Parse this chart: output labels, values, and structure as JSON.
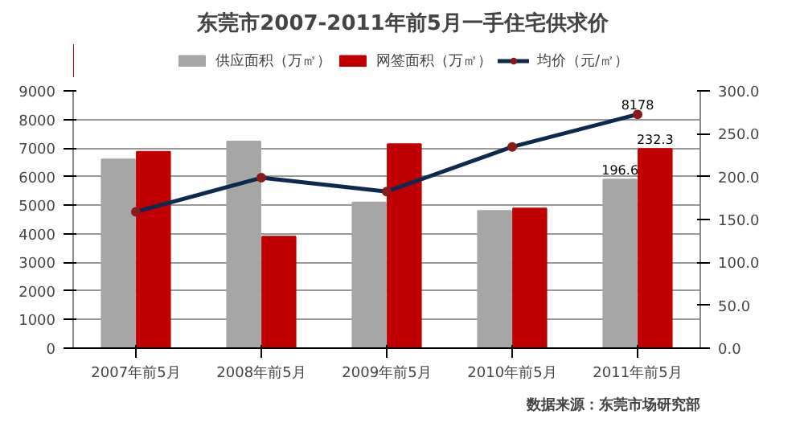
{
  "chart_data": {
    "type": "bar",
    "title": "东莞市2007-2011年前5月一手住宅供求价",
    "categories": [
      "2007年前5月",
      "2008年前5月",
      "2009年前5月",
      "2010年前5月",
      "2011年前5月"
    ],
    "series": [
      {
        "name": "供应面积（万㎡）",
        "color": "#a6a6a6",
        "axis": "y2",
        "values": [
          220,
          241,
          170,
          160,
          196.6
        ],
        "value_labels": [
          null,
          null,
          null,
          null,
          "196.6"
        ]
      },
      {
        "name": "网签面积（万㎡）",
        "color": "#c00000",
        "axis": "y2",
        "values": [
          229,
          130,
          238,
          163,
          232.3
        ],
        "value_labels": [
          null,
          null,
          null,
          null,
          "232.3"
        ]
      },
      {
        "name": "均价（元/㎡）",
        "color": "#0d2a4e",
        "type": "line",
        "marker": "circle",
        "values": [
          4770,
          5960,
          5480,
          7040,
          8178
        ],
        "value_labels": [
          null,
          null,
          null,
          null,
          "8178"
        ]
      }
    ],
    "ylim": [
      0,
      9000
    ],
    "yticks": [
      0,
      1000,
      2000,
      3000,
      4000,
      5000,
      6000,
      7000,
      8000,
      9000
    ],
    "y2lim": [
      0,
      300
    ],
    "y2ticks": [
      {
        "value": 0,
        "label": "0.0"
      },
      {
        "value": 50,
        "label": "50.0"
      },
      {
        "value": 100,
        "label": "100.0"
      },
      {
        "value": 150,
        "label": "150.0"
      },
      {
        "value": 200,
        "label": "200.0"
      },
      {
        "value": 250,
        "label": "250.0"
      },
      {
        "value": 300,
        "label": "300.0"
      }
    ],
    "grid": "y",
    "legend": "top",
    "line_style": "solid",
    "annotations": [
      "数据来源：东莞市场研究部"
    ]
  }
}
